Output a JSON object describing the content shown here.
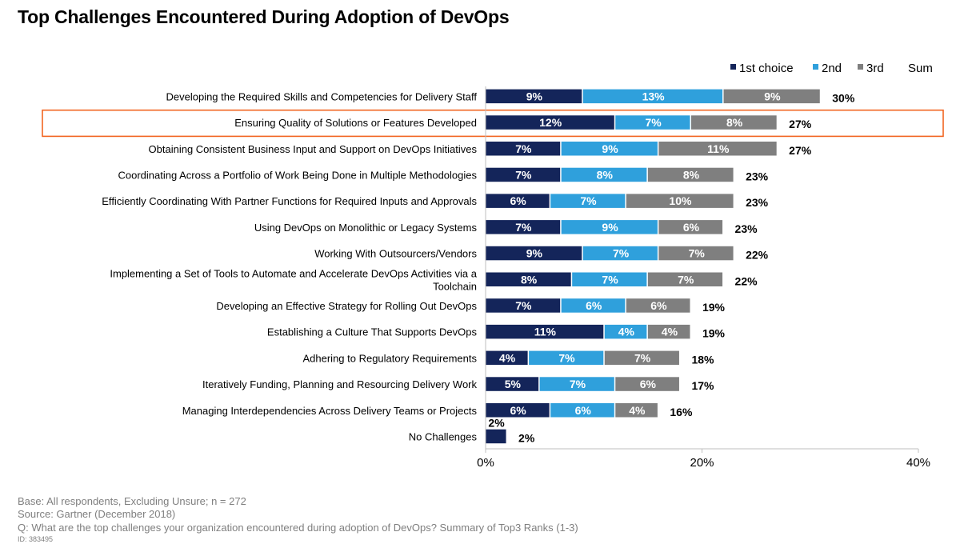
{
  "chart_data": {
    "type": "bar",
    "stacked": true,
    "orientation": "horizontal",
    "title": "Top Challenges Encountered During Adoption of DevOps",
    "categories": [
      "Developing the Required Skills and Competencies for Delivery Staff",
      "Ensuring Quality of Solutions or Features Developed",
      "Obtaining Consistent Business Input and Support on DevOps Initiatives",
      "Coordinating Across a Portfolio of Work Being Done in Multiple Methodologies",
      "Efficiently Coordinating With Partner Functions for Required Inputs and Approvals",
      "Using DevOps on Monolithic or Legacy Systems",
      "Working With Outsourcers/Vendors",
      "Implementing a Set of Tools to Automate and Accelerate DevOps Activities via a Toolchain",
      "Developing an Effective Strategy for Rolling Out DevOps",
      "Establishing a Culture That Supports DevOps",
      "Adhering to Regulatory Requirements",
      "Iteratively Funding, Planning and Resourcing Delivery Work",
      "Managing Interdependencies Across Delivery Teams or Projects",
      "No Challenges"
    ],
    "series": [
      {
        "name": "1st choice",
        "color": "#14255a",
        "values": [
          9,
          12,
          7,
          7,
          6,
          7,
          9,
          8,
          7,
          11,
          4,
          5,
          6,
          2
        ]
      },
      {
        "name": "2nd",
        "color": "#2fa0dc",
        "values": [
          13,
          7,
          9,
          8,
          7,
          9,
          7,
          7,
          6,
          4,
          7,
          7,
          6,
          0
        ]
      },
      {
        "name": "3rd",
        "color": "#7f7f7f",
        "values": [
          9,
          8,
          11,
          8,
          10,
          6,
          7,
          7,
          6,
          4,
          7,
          6,
          4,
          0
        ]
      }
    ],
    "sum_label": "Sum",
    "sums": [
      30,
      27,
      27,
      23,
      23,
      23,
      22,
      22,
      19,
      19,
      18,
      17,
      16,
      2
    ],
    "highlighted_category_index": 1,
    "highlight_color": "#f26522",
    "xlim": [
      0,
      40
    ],
    "x_ticks": [
      0,
      20,
      40
    ],
    "tick_suffix": "%",
    "legend_position": "top-right"
  },
  "footer": {
    "base": "Base: All respondents, Excluding Unsure; n = 272",
    "source": "Source: Gartner (December 2018)",
    "question": "Q: What are the top challenges your organization encountered during adoption of DevOps? Summary of Top3 Ranks (1-3)",
    "id": "ID: 383495"
  }
}
